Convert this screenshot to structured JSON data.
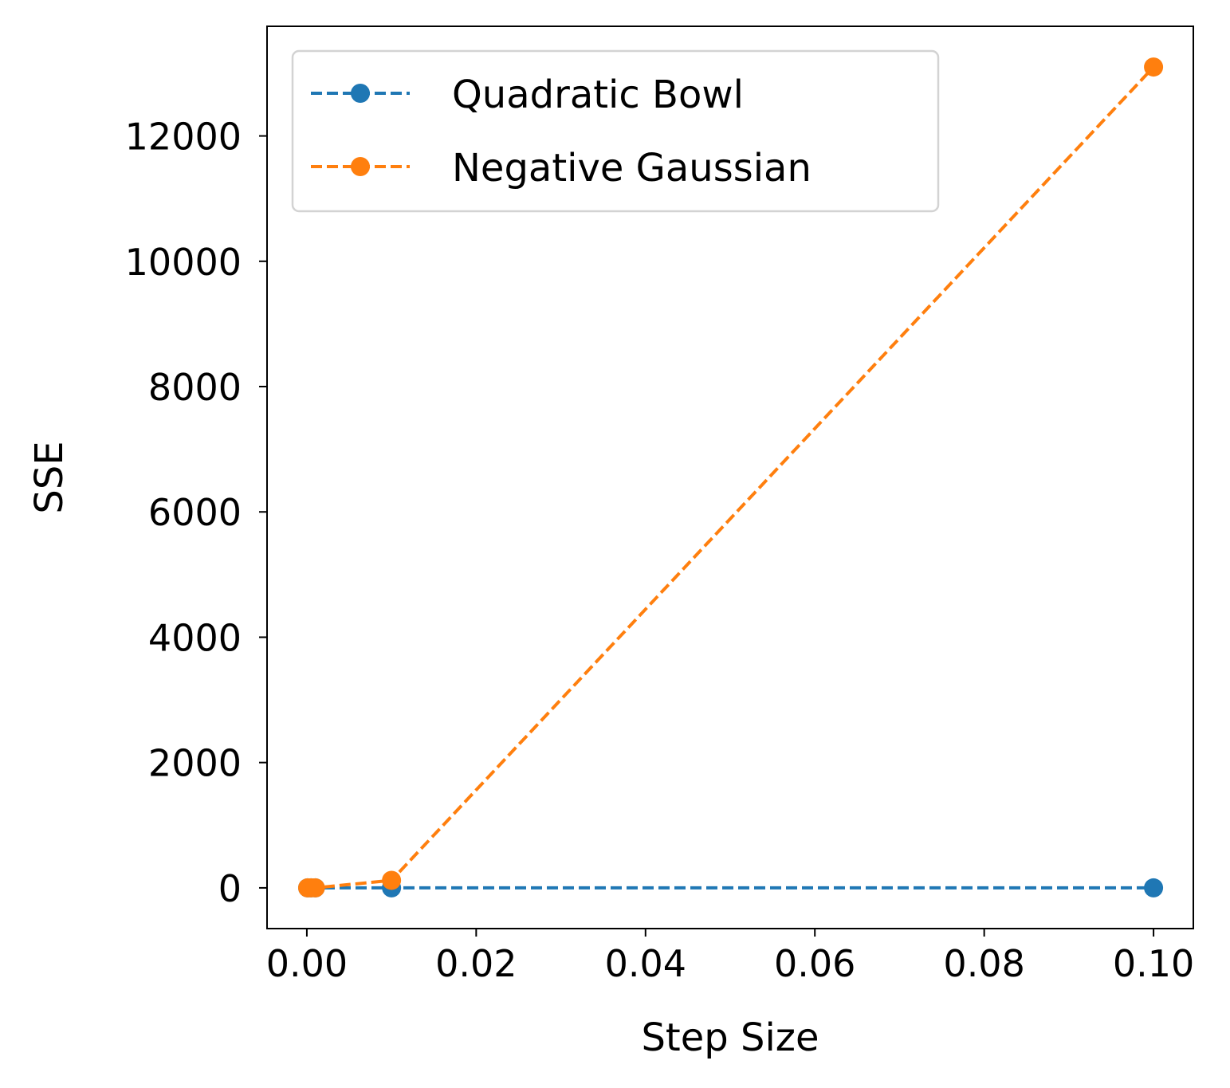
{
  "chart_data": {
    "type": "line",
    "title": "",
    "xlabel": "Step Size",
    "ylabel": "SSE",
    "xlim": [
      -0.0047,
      0.1047
    ],
    "ylim": [
      -650,
      13750
    ],
    "xticks": [
      0.0,
      0.02,
      0.04,
      0.06,
      0.08,
      0.1
    ],
    "xtick_labels": [
      "0.00",
      "0.02",
      "0.04",
      "0.06",
      "0.08",
      "0.10"
    ],
    "yticks": [
      0,
      2000,
      4000,
      6000,
      8000,
      10000,
      12000
    ],
    "ytick_labels": [
      "0",
      "2000",
      "4000",
      "6000",
      "8000",
      "10000",
      "12000"
    ],
    "grid": false,
    "legend_position": "top-left",
    "series": [
      {
        "name": "Quadratic Bowl",
        "color": "#1f77b4",
        "line_style": "dashed",
        "marker": "circle",
        "x": [
          0.0001,
          0.0005,
          0.001,
          0.01,
          0.1
        ],
        "y": [
          0,
          0,
          0,
          0,
          0
        ]
      },
      {
        "name": "Negative Gaussian",
        "color": "#ff7f0e",
        "line_style": "dashed",
        "marker": "circle",
        "x": [
          0.0001,
          0.0005,
          0.001,
          0.01,
          0.1
        ],
        "y": [
          0,
          0,
          0,
          120,
          13100
        ]
      }
    ]
  }
}
